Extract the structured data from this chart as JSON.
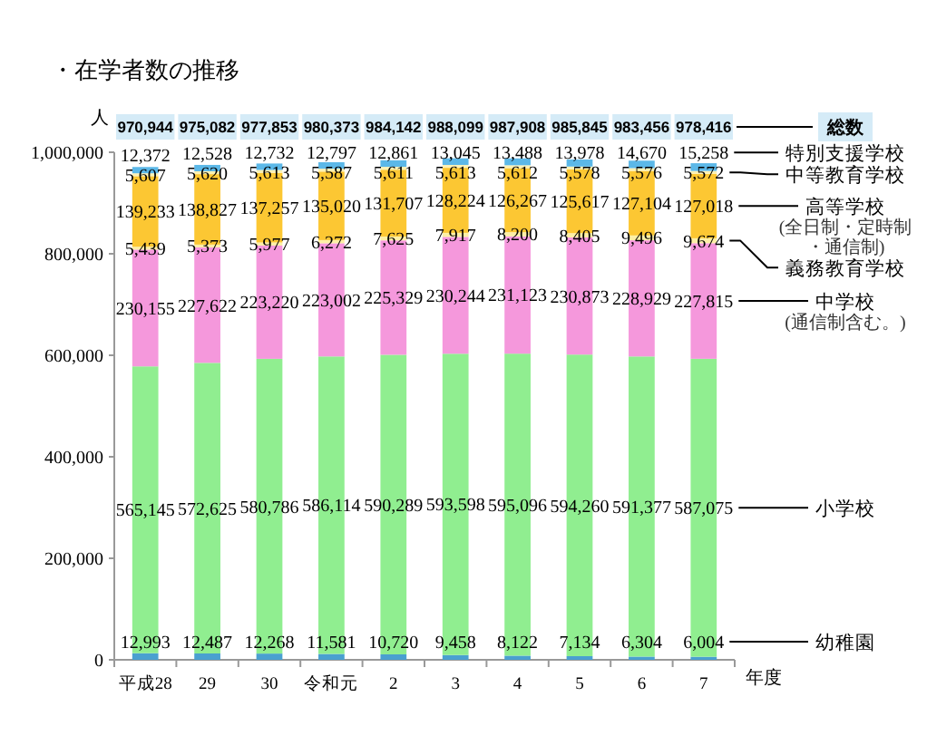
{
  "chart_data": {
    "type": "bar",
    "stacked": true,
    "title": "・在学者数の推移",
    "xlabel": "年度",
    "ylabel": "人",
    "categories": [
      "平成28",
      "29",
      "30",
      "令和元",
      "2",
      "3",
      "4",
      "5",
      "6",
      "7"
    ],
    "ylim": [
      0,
      1000000
    ],
    "yticks": [
      0,
      {
        "value": 200000,
        "label": "200,000"
      },
      {
        "value": 400000,
        "label": "400,000"
      },
      {
        "value": 600000,
        "label": "600,000"
      },
      {
        "value": 800000,
        "label": "800,000"
      },
      {
        "value": 1000000,
        "label": "1,000,000"
      }
    ],
    "series": [
      {
        "name": "幼稚園",
        "color": "#4aa0d0",
        "values": [
          12993,
          12487,
          12268,
          11581,
          10720,
          9458,
          8122,
          7134,
          6304,
          6004
        ],
        "value_labels": [
          "12,993",
          "12,487",
          "12,268",
          "11,581",
          "10,720",
          "9,458",
          "8,122",
          "7,134",
          "6,304",
          "6,004"
        ]
      },
      {
        "name": "小学校",
        "color": "#90ee90",
        "values": [
          565145,
          572625,
          580786,
          586114,
          590289,
          593598,
          595096,
          594260,
          591377,
          587075
        ],
        "value_labels": [
          "565,145",
          "572,625",
          "580,786",
          "586,114",
          "590,289",
          "593,598",
          "595,096",
          "594,260",
          "591,377",
          "587,075"
        ]
      },
      {
        "name": "中学校\n(通信制含む。)",
        "color": "#f598dc",
        "values": [
          230155,
          227622,
          223220,
          223002,
          225329,
          230244,
          231123,
          230873,
          228929,
          227815
        ],
        "value_labels": [
          "230,155",
          "227,622",
          "223,220",
          "223,002",
          "225,329",
          "230,244",
          "231,123",
          "230,873",
          "228,929",
          "227,815"
        ]
      },
      {
        "name": "義務教育学校",
        "color": "#fdf0a6",
        "values": [
          5439,
          5373,
          5977,
          6272,
          7625,
          7917,
          8200,
          8405,
          9496,
          9674
        ],
        "value_labels": [
          "5,439",
          "5,373",
          "5,977",
          "6,272",
          "7,625",
          "7,917",
          "8,200",
          "8,405",
          "9,496",
          "9,674"
        ]
      },
      {
        "name": "高等学校\n(全日制・定時制・通信制)",
        "color": "#fcc733",
        "values": [
          139233,
          138827,
          137257,
          135020,
          131707,
          128224,
          126267,
          125617,
          127104,
          127018
        ],
        "value_labels": [
          "139,233",
          "138,827",
          "137,257",
          "135,020",
          "131,707",
          "128,224",
          "126,267",
          "125,617",
          "127,104",
          "127,018"
        ]
      },
      {
        "name": "中等教育学校",
        "color": "#fff2b3",
        "values": [
          5607,
          5620,
          5613,
          5587,
          5611,
          5613,
          5612,
          5578,
          5576,
          5572
        ],
        "value_labels": [
          "5,607",
          "5,620",
          "5,613",
          "5,587",
          "5,611",
          "5,613",
          "5,612",
          "5,578",
          "5,576",
          "5,572"
        ]
      },
      {
        "name": "特別支援学校",
        "color": "#5cb8e8",
        "values": [
          12372,
          12528,
          12732,
          12797,
          12861,
          13045,
          13488,
          13978,
          14670,
          15258
        ],
        "value_labels": [
          "12,372",
          "12,528",
          "12,732",
          "12,797",
          "12,861",
          "13,045",
          "13,488",
          "13,978",
          "14,670",
          "15,258"
        ]
      }
    ],
    "totals": [
      "970,944",
      "975,082",
      "977,853",
      "980,373",
      "984,142",
      "988,099",
      "987,908",
      "985,845",
      "983,456",
      "978,416"
    ],
    "annotations": [
      "総数"
    ],
    "legend": "right",
    "grid": false
  }
}
